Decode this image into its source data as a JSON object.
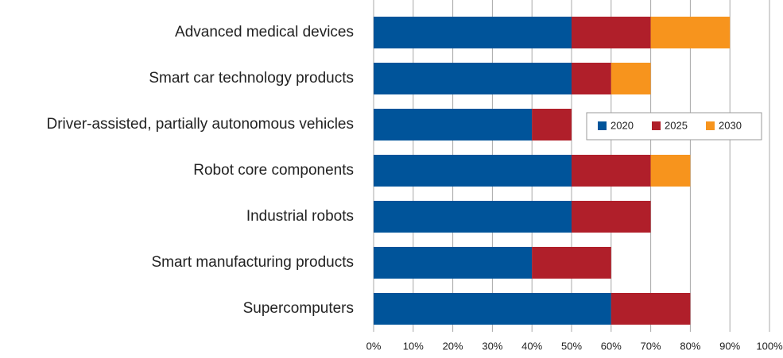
{
  "chart_data": {
    "type": "bar",
    "orientation": "horizontal",
    "stacked": true,
    "categories": [
      "Advanced medical devices",
      "Smart car technology products",
      "Driver-assisted, partially autonomous vehicles",
      "Robot core components",
      "Industrial robots",
      "Smart manufacturing products",
      "Supercomputers"
    ],
    "series": [
      {
        "name": "2020",
        "color": "#00549a",
        "values": [
          50,
          50,
          40,
          50,
          50,
          40,
          60
        ]
      },
      {
        "name": "2025",
        "color": "#b01f2a",
        "values": [
          20,
          10,
          10,
          20,
          20,
          20,
          20
        ]
      },
      {
        "name": "2030",
        "color": "#f7941d",
        "values": [
          20,
          10,
          null,
          10,
          null,
          null,
          null
        ]
      }
    ],
    "xlim": [
      0,
      100
    ],
    "xticks": [
      {
        "value": 0,
        "label": "0%"
      },
      {
        "value": 10,
        "label": "10%"
      },
      {
        "value": 20,
        "label": "20%"
      },
      {
        "value": 30,
        "label": "30%"
      },
      {
        "value": 40,
        "label": "40%"
      },
      {
        "value": 50,
        "label": "50%"
      },
      {
        "value": 60,
        "label": "60%"
      },
      {
        "value": 70,
        "label": "70%"
      },
      {
        "value": 80,
        "label": "80%"
      },
      {
        "value": 90,
        "label": "90%"
      },
      {
        "value": 100,
        "label": "100%"
      }
    ],
    "grid": true,
    "legend": "right"
  }
}
